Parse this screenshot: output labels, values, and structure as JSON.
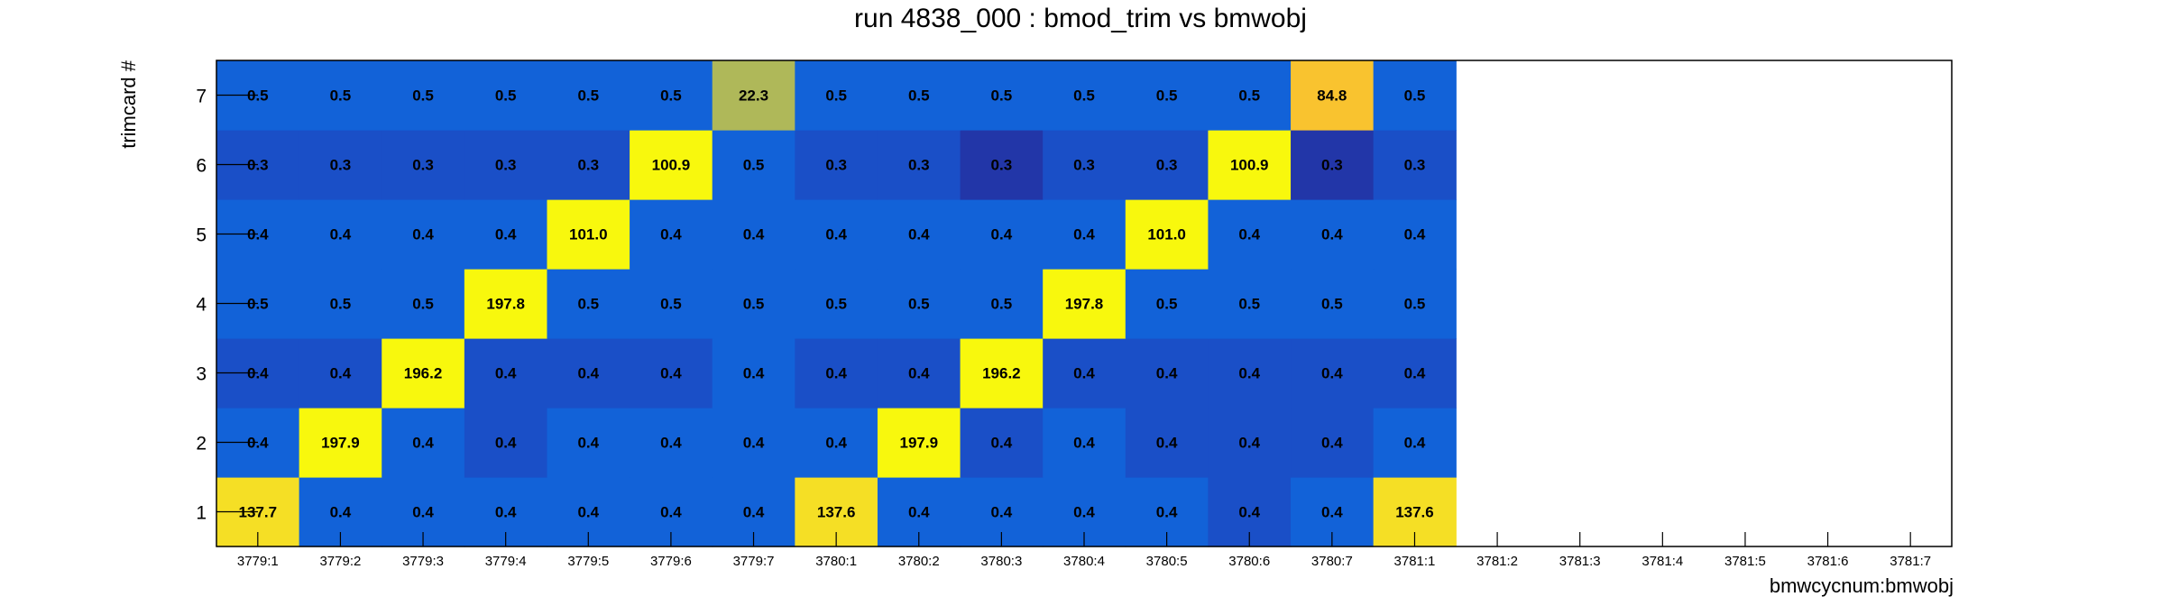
{
  "chart_data": {
    "type": "heatmap",
    "title": "run 4838_000 : bmod_trim vs bmwobj",
    "xlabel": "bmwcycnum:bmwobj",
    "ylabel": "trimcard #",
    "x_categories": [
      "3779:1",
      "3779:2",
      "3779:3",
      "3779:4",
      "3779:5",
      "3779:6",
      "3779:7",
      "3780:1",
      "3780:2",
      "3780:3",
      "3780:4",
      "3780:5",
      "3780:6",
      "3780:7",
      "3781:1",
      "3781:2",
      "3781:3",
      "3781:4",
      "3781:5",
      "3781:6",
      "3781:7"
    ],
    "y_categories": [
      "1",
      "2",
      "3",
      "4",
      "5",
      "6",
      "7"
    ],
    "filled_columns": 15,
    "values": [
      [
        137.7,
        0.4,
        0.4,
        0.4,
        0.4,
        0.4,
        0.4,
        137.6,
        0.4,
        0.4,
        0.4,
        0.4,
        0.4,
        0.4,
        137.6
      ],
      [
        0.4,
        197.9,
        0.4,
        0.4,
        0.4,
        0.4,
        0.4,
        0.4,
        197.9,
        0.4,
        0.4,
        0.4,
        0.4,
        0.4,
        0.4
      ],
      [
        0.4,
        0.4,
        196.2,
        0.4,
        0.4,
        0.4,
        0.4,
        0.4,
        0.4,
        196.2,
        0.4,
        0.4,
        0.4,
        0.4,
        0.4
      ],
      [
        0.5,
        0.5,
        0.5,
        197.8,
        0.5,
        0.5,
        0.5,
        0.5,
        0.5,
        0.5,
        197.8,
        0.5,
        0.5,
        0.5,
        0.5
      ],
      [
        0.4,
        0.4,
        0.4,
        0.4,
        101.0,
        0.4,
        0.4,
        0.4,
        0.4,
        0.4,
        0.4,
        101.0,
        0.4,
        0.4,
        0.4
      ],
      [
        0.3,
        0.3,
        0.3,
        0.3,
        0.3,
        100.9,
        0.5,
        0.3,
        0.3,
        0.3,
        0.3,
        0.3,
        100.9,
        0.3,
        0.3
      ],
      [
        0.5,
        0.5,
        0.5,
        0.5,
        0.5,
        0.5,
        22.3,
        0.5,
        0.5,
        0.5,
        0.5,
        0.5,
        0.5,
        84.8,
        0.5
      ]
    ],
    "colors": [
      [
        "#f5df25",
        "#1262d8",
        "#1262d8",
        "#1262d8",
        "#1262d8",
        "#1262d8",
        "#1262d8",
        "#f5df25",
        "#1262d8",
        "#1262d8",
        "#1262d8",
        "#1262d8",
        "#1a4fc7",
        "#1262d8",
        "#f5df25"
      ],
      [
        "#1262d8",
        "#f8f80d",
        "#1262d8",
        "#1a4fc7",
        "#1262d8",
        "#1262d8",
        "#1262d8",
        "#1262d8",
        "#f8f80d",
        "#1a4fc7",
        "#1262d8",
        "#1a4fc7",
        "#1a4fc7",
        "#1a4fc7",
        "#1262d8"
      ],
      [
        "#1a4fc7",
        "#1a4fc7",
        "#f8f80d",
        "#1a4fc7",
        "#1a4fc7",
        "#1a4fc7",
        "#1262d8",
        "#1a4fc7",
        "#1a4fc7",
        "#f8f80d",
        "#1a4fc7",
        "#1a4fc7",
        "#1a4fc7",
        "#1a4fc7",
        "#1a4fc7"
      ],
      [
        "#1262d8",
        "#1262d8",
        "#1262d8",
        "#f8f80d",
        "#1262d8",
        "#1262d8",
        "#1262d8",
        "#1262d8",
        "#1262d8",
        "#1262d8",
        "#f8f80d",
        "#1262d8",
        "#1262d8",
        "#1262d8",
        "#1262d8"
      ],
      [
        "#1262d8",
        "#1262d8",
        "#1262d8",
        "#1262d8",
        "#f8f80d",
        "#1262d8",
        "#1262d8",
        "#1262d8",
        "#1262d8",
        "#1262d8",
        "#1262d8",
        "#f8f80d",
        "#1262d8",
        "#1262d8",
        "#1262d8"
      ],
      [
        "#1a4fc7",
        "#1a4fc7",
        "#1a4fc7",
        "#1a4fc7",
        "#1a4fc7",
        "#f8f80d",
        "#1262d8",
        "#1a4fc7",
        "#1a4fc7",
        "#2236a8",
        "#1a4fc7",
        "#1a4fc7",
        "#f8f80d",
        "#2236a8",
        "#1a4fc7"
      ],
      [
        "#1262d8",
        "#1262d8",
        "#1262d8",
        "#1262d8",
        "#1262d8",
        "#1262d8",
        "#afb859",
        "#1262d8",
        "#1262d8",
        "#1262d8",
        "#1262d8",
        "#1262d8",
        "#1262d8",
        "#f9c32f",
        "#1262d8"
      ]
    ],
    "grid": false,
    "legend": "none"
  }
}
